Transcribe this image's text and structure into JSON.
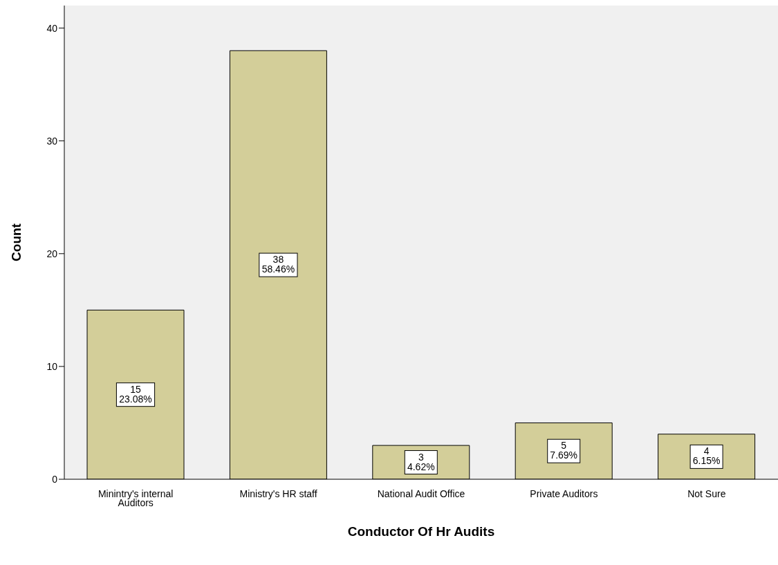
{
  "chart_data": {
    "type": "bar",
    "xlabel": "Conductor Of Hr Audits",
    "ylabel": "Count",
    "categories": [
      "Minintry's internal Auditors",
      "Ministry's HR staff",
      "National Audit Office",
      "Private Auditors",
      "Not Sure"
    ],
    "values": [
      15,
      38,
      3,
      5,
      4
    ],
    "value_labels": [
      "15\n23.08%",
      "38\n58.46%",
      "3\n4.62%",
      "5\n7.69%",
      "4\n6.15%"
    ],
    "color": "#d3ce99",
    "ylim": [
      0,
      42
    ],
    "yticks": [
      0,
      10,
      20,
      30,
      40
    ]
  }
}
